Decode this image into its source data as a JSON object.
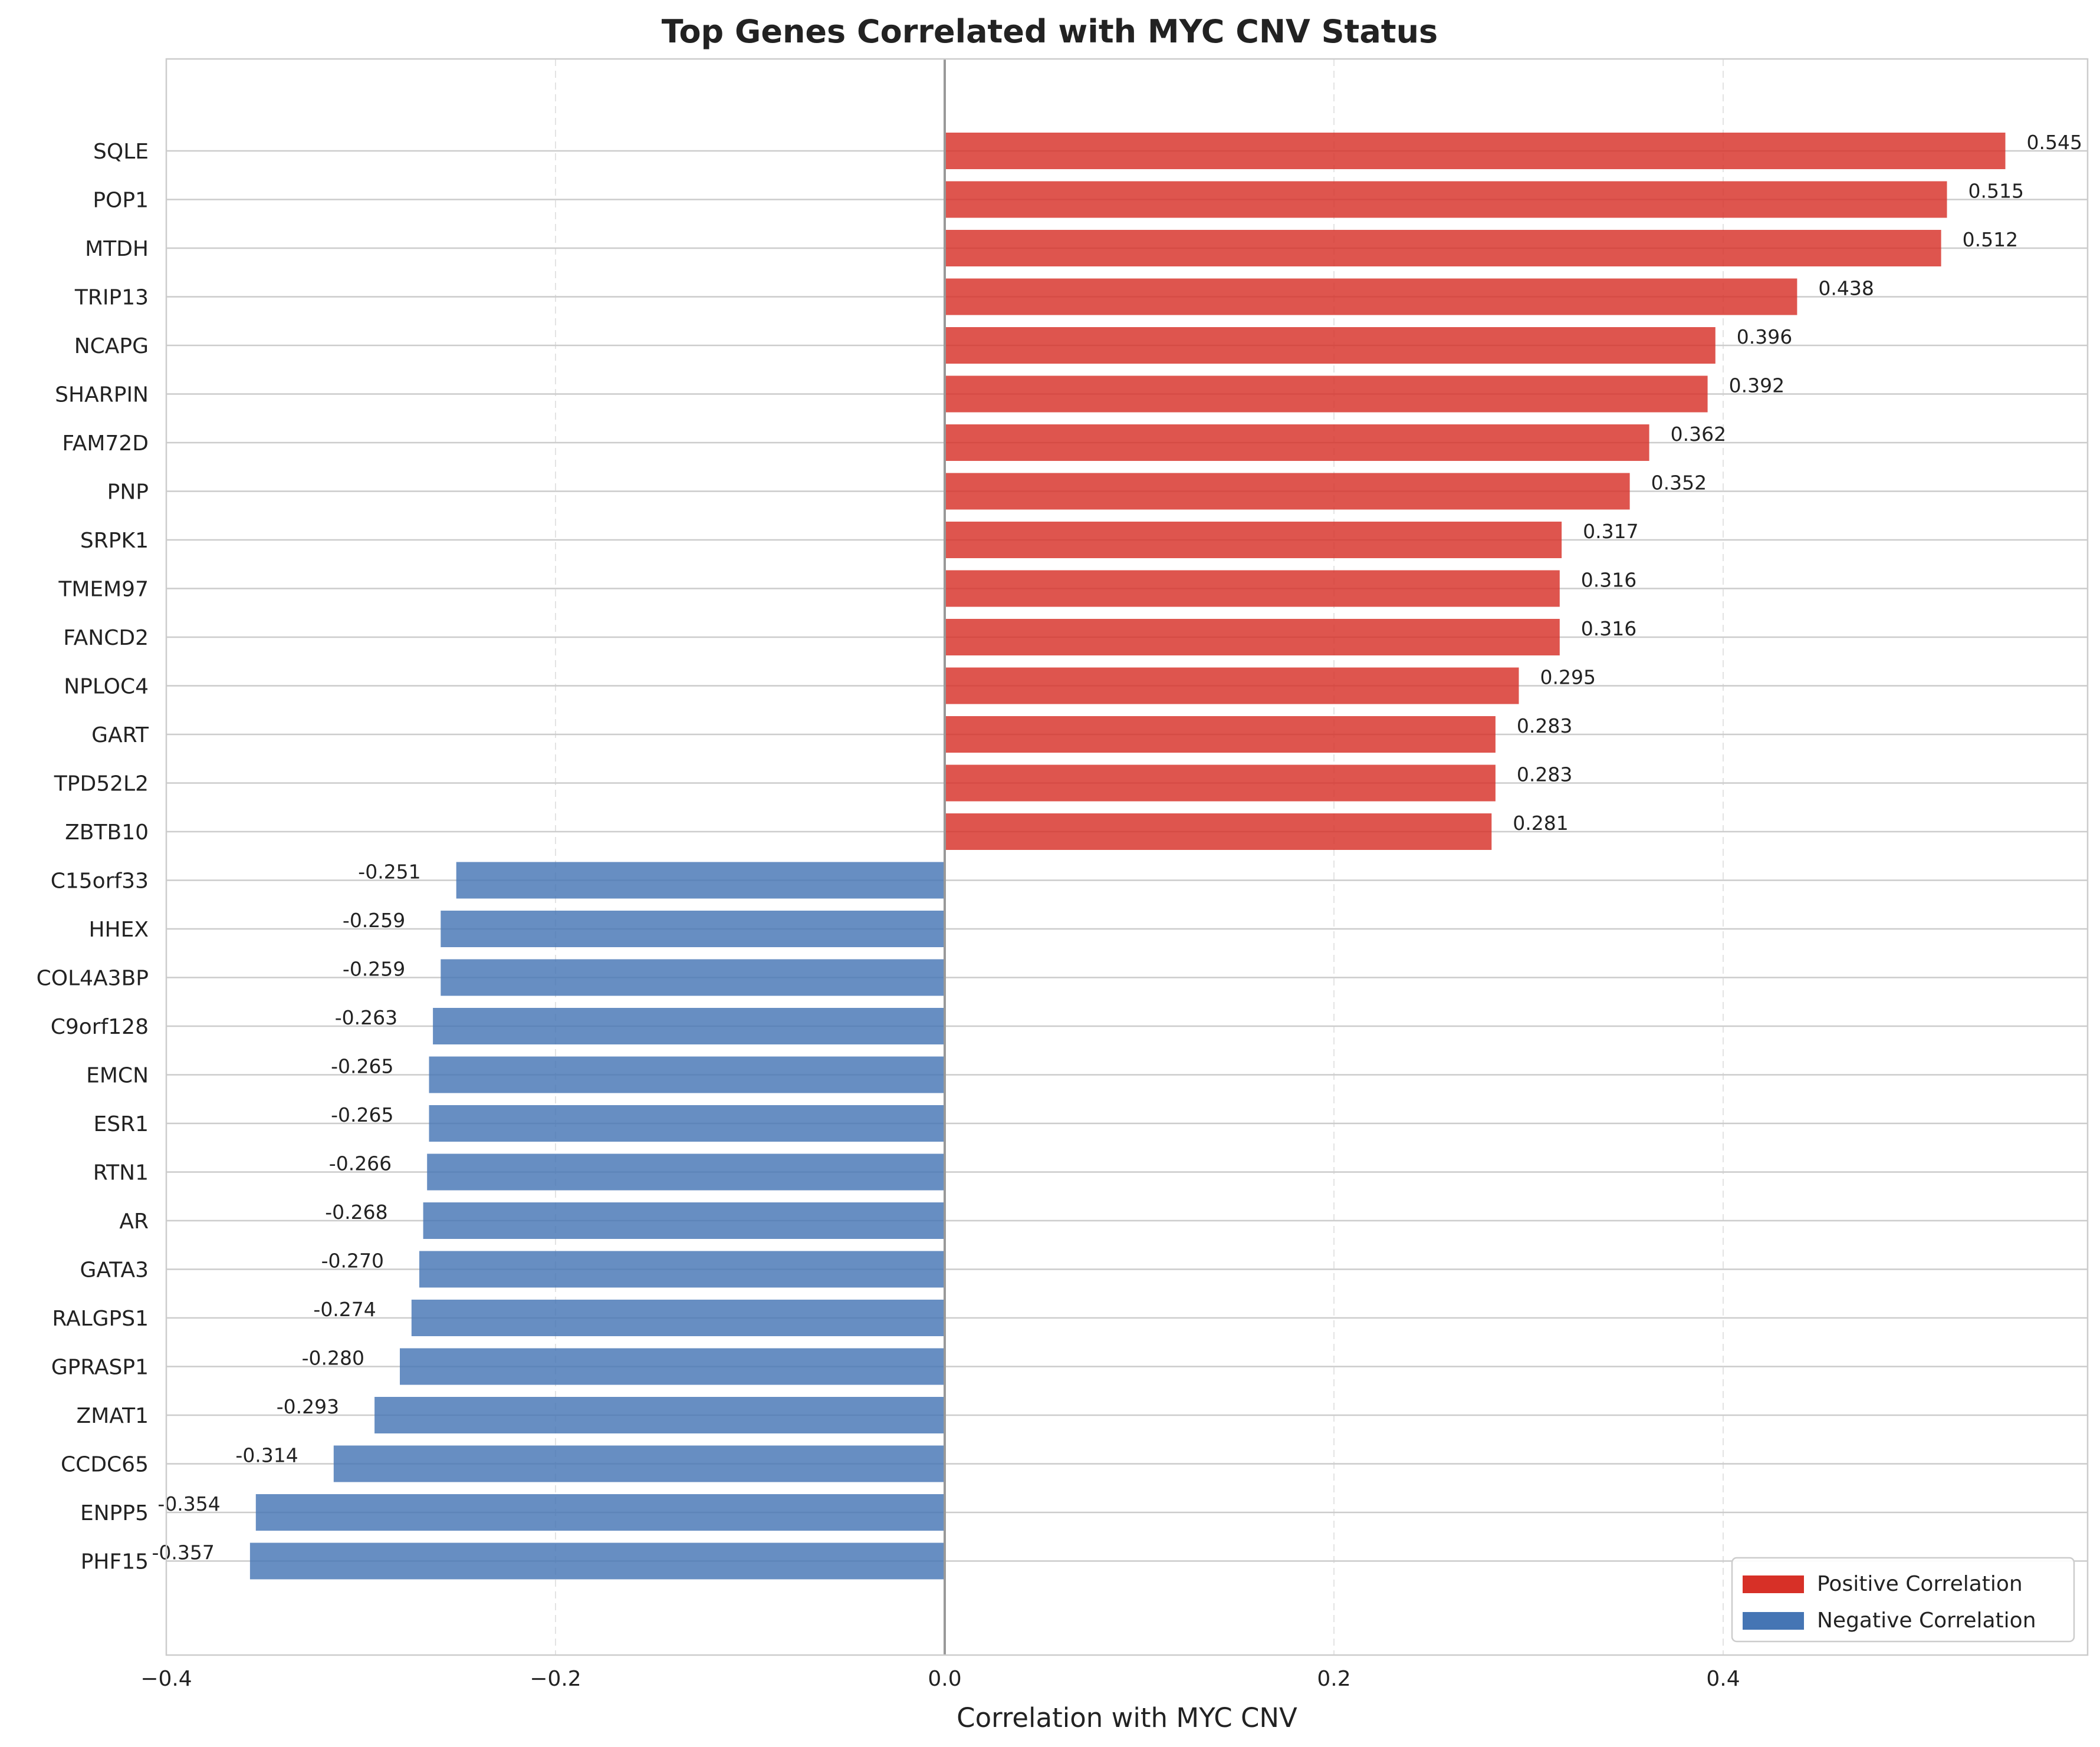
{
  "chart_data": {
    "type": "bar",
    "orientation": "horizontal",
    "title": "Top Genes Correlated with MYC CNV Status",
    "xlabel": "Correlation with MYC CNV",
    "ylabel": "",
    "xlim": [
      -0.4,
      0.6
    ],
    "xticks": [
      -0.4,
      -0.2,
      0.0,
      0.2,
      0.4
    ],
    "xtick_labels": [
      "−0.4",
      "−0.2",
      "0.0",
      "0.2",
      "0.4"
    ],
    "grid": true,
    "legend": {
      "placement": "bottom-right",
      "entries": [
        {
          "label": "Positive Correlation",
          "color": "#d73027"
        },
        {
          "label": "Negative Correlation",
          "color": "#4575b4"
        }
      ]
    },
    "colors": {
      "positive": "#d73027",
      "negative": "#4575b4",
      "zero_line": "#999999"
    },
    "categories": [
      "SQLE",
      "POP1",
      "MTDH",
      "TRIP13",
      "NCAPG",
      "SHARPIN",
      "FAM72D",
      "PNP",
      "SRPK1",
      "TMEM97",
      "FANCD2",
      "NPLOC4",
      "GART",
      "TPD52L2",
      "ZBTB10",
      "C15orf33",
      "HHEX",
      "COL4A3BP",
      "C9orf128",
      "EMCN",
      "ESR1",
      "RTN1",
      "AR",
      "GATA3",
      "RALGPS1",
      "GPRASP1",
      "ZMAT1",
      "CCDC65",
      "ENPP5",
      "PHF15"
    ],
    "values": [
      0.545,
      0.515,
      0.512,
      0.438,
      0.396,
      0.392,
      0.362,
      0.352,
      0.317,
      0.316,
      0.316,
      0.295,
      0.283,
      0.283,
      0.281,
      -0.251,
      -0.259,
      -0.259,
      -0.263,
      -0.265,
      -0.265,
      -0.266,
      -0.268,
      -0.27,
      -0.274,
      -0.28,
      -0.293,
      -0.314,
      -0.354,
      -0.357
    ],
    "value_labels": [
      "0.545",
      "0.515",
      "0.512",
      "0.438",
      "0.396",
      "0.392",
      "0.362",
      "0.352",
      "0.317",
      "0.316",
      "0.316",
      "0.295",
      "0.283",
      "0.283",
      "0.281",
      "-0.251",
      "-0.259",
      "-0.259",
      "-0.263",
      "-0.265",
      "-0.265",
      "-0.266",
      "-0.268",
      "-0.270",
      "-0.274",
      "-0.280",
      "-0.293",
      "-0.314",
      "-0.354",
      "-0.357"
    ]
  }
}
